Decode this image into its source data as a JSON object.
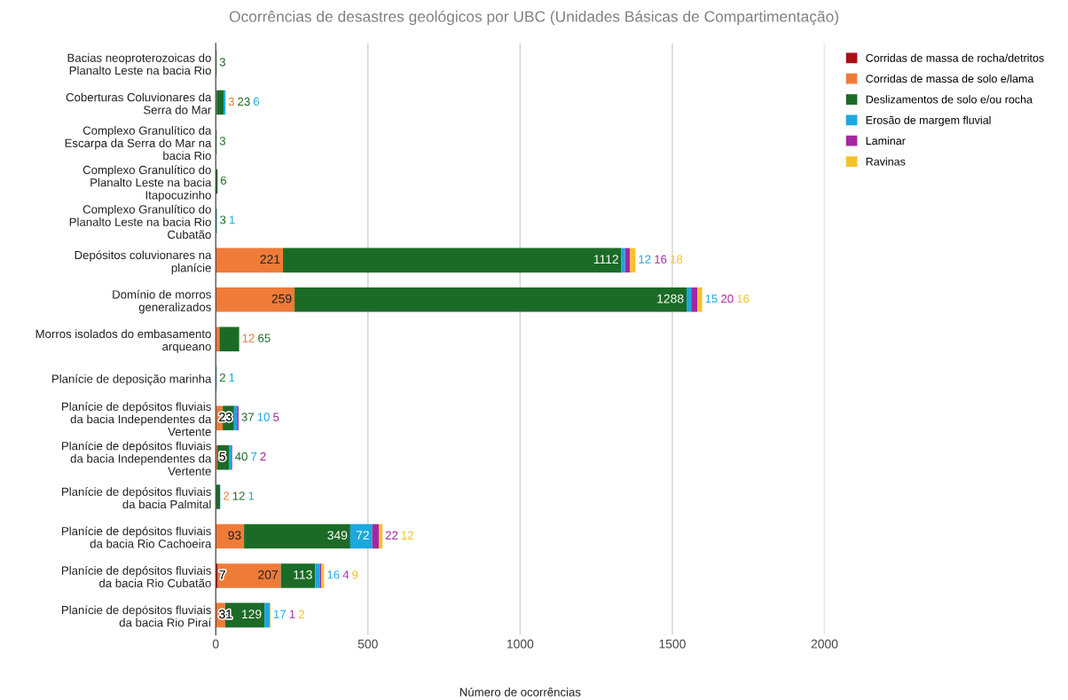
{
  "chart_data": {
    "type": "bar",
    "orientation": "horizontal",
    "stacked": true,
    "title": "Ocorrências de desastres geológicos por UBC (Unidades Básicas de Compartimentação)",
    "xlabel": "Número de ocorrências",
    "categories": [
      "Bacias neoproterozoicas do Planalto Leste na bacia Rio",
      "Coberturas Coluvionares da Serra do Mar",
      "Complexo Granulítico da Escarpa da Serra do Mar na bacia Rio",
      "Complexo Granulítico do Planalto Leste na bacia Itapocuzinho",
      "Complexo Granulítico do Planalto Leste na bacia Rio Cubatão",
      "Depósitos coluvionares na planície",
      "Domínio de morros generalizados",
      "Morros isolados do embasamento arqueano",
      "Planície de deposição marinha",
      "Planície de depósitos fluviais da bacia Independentes da Vertente",
      "Planície de depósitos fluviais da bacia Independentes da Vertente",
      "Planície de depósitos fluviais da bacia Palmital",
      "Planície de depósitos fluviais da bacia Rio Cachoeira",
      "Planície de depósitos fluviais da bacia Rio Cubatão",
      "Planície de depósitos fluviais da bacia Rio Piraí"
    ],
    "series": [
      {
        "name": "Corridas de massa de rocha/detritos",
        "color": "#a50f15",
        "values": [
          null,
          null,
          null,
          null,
          null,
          null,
          null,
          null,
          null,
          null,
          null,
          null,
          null,
          7,
          null
        ]
      },
      {
        "name": "Corridas de massa de solo e/lama",
        "color": "#ef7b39",
        "values": [
          null,
          3,
          null,
          null,
          null,
          221,
          259,
          12,
          null,
          23,
          5,
          2,
          93,
          207,
          31
        ]
      },
      {
        "name": "Deslizamentos de solo e/ou rocha",
        "color": "#1b6b27",
        "values": [
          3,
          23,
          3,
          6,
          3,
          1112,
          1288,
          65,
          2,
          37,
          40,
          12,
          349,
          113,
          129
        ]
      },
      {
        "name": "Erosão de margem fluvial",
        "color": "#1ba7e0",
        "values": [
          null,
          6,
          null,
          null,
          1,
          12,
          15,
          null,
          1,
          10,
          7,
          1,
          72,
          16,
          17
        ]
      },
      {
        "name": "Laminar",
        "color": "#a4279f",
        "values": [
          null,
          null,
          null,
          null,
          null,
          16,
          20,
          null,
          null,
          5,
          2,
          null,
          22,
          4,
          1
        ]
      },
      {
        "name": "Ravinas",
        "color": "#f5c12b",
        "values": [
          null,
          null,
          null,
          null,
          null,
          18,
          16,
          null,
          null,
          null,
          null,
          null,
          12,
          9,
          2
        ]
      }
    ],
    "xlim": [
      0,
      2000
    ],
    "xticks": [
      0,
      500,
      1000,
      1500,
      2000
    ],
    "grid": "x",
    "legend": "right",
    "data_labels": true
  }
}
